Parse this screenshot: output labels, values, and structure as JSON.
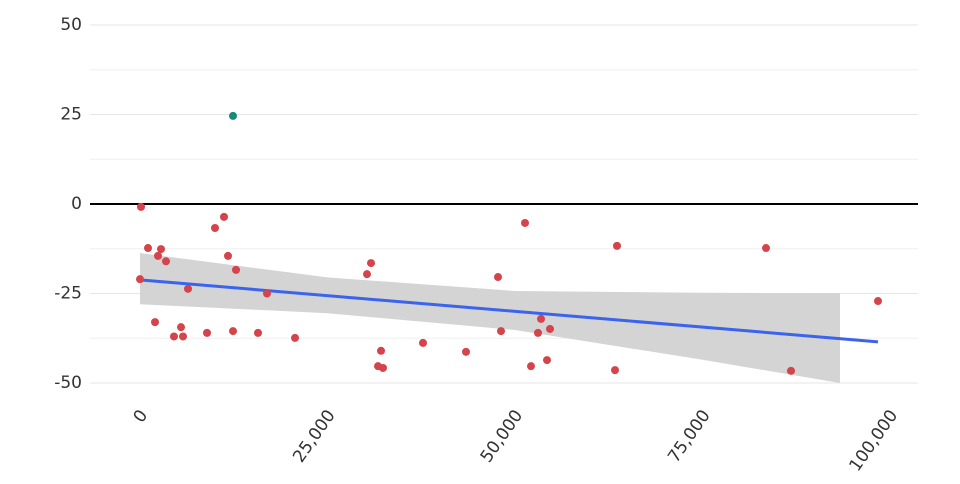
{
  "chart_data": {
    "type": "scatter",
    "xlim": [
      -6667,
      103733
    ],
    "ylim": [
      -50,
      50
    ],
    "xticks": [
      0,
      {
        "value": 25000,
        "label": "25,000"
      },
      {
        "value": 50000,
        "label": "50,000"
      },
      {
        "value": 75000,
        "label": "75,000"
      },
      {
        "value": 100000,
        "label": "100,000"
      }
    ],
    "yticks": [
      -50,
      -25,
      0,
      25,
      50
    ],
    "grid": true,
    "minor_grid": true,
    "zero_line": true,
    "band": {
      "color": "#d4d4d4",
      "x": [
        0,
        25000,
        50000,
        75000,
        93333
      ],
      "upper": [
        -13.7,
        -20.5,
        -24.3,
        -24.8,
        -24.9
      ],
      "lower": [
        -28,
        -30.5,
        -35.2,
        -43.5,
        -50
      ]
    },
    "trend": {
      "color": "#3a63ee",
      "x": [
        0,
        98400
      ],
      "values": [
        -21.2,
        -38.5
      ]
    },
    "series": [
      {
        "color": "#d5434b",
        "x": [
          133,
          0,
          1067,
          2800,
          2000,
          2400,
          3467,
          4533,
          5467,
          5733,
          6400,
          8933,
          10000,
          11200,
          11733,
          12400,
          12800,
          15733,
          16933,
          20667,
          30267,
          30800,
          32133,
          31733,
          32400,
          37733,
          43467,
          47733,
          48133,
          51333,
          52133,
          53067,
          53467,
          54267,
          54667,
          63333,
          63600,
          83467,
          86800,
          98400
        ],
        "values": [
          -0.8,
          -21,
          -12.3,
          -12.6,
          -33,
          -14.5,
          -16,
          -37,
          -34.4,
          -37,
          -23.7,
          -36,
          -6.7,
          -3.6,
          -14.5,
          -35.5,
          -18.4,
          -36,
          -25,
          -37.4,
          -19.6,
          -16.5,
          -41,
          -45.3,
          -45.8,
          -38.8,
          -41.3,
          -20.4,
          -35.5,
          -5.3,
          -45.3,
          -36,
          -32.1,
          -43.6,
          -34.9,
          -46.4,
          -11.7,
          -12.3,
          -46.6,
          -27.1
        ]
      },
      {
        "color": "#178a7c",
        "x": [
          12400
        ],
        "values": [
          24.6
        ]
      }
    ]
  }
}
